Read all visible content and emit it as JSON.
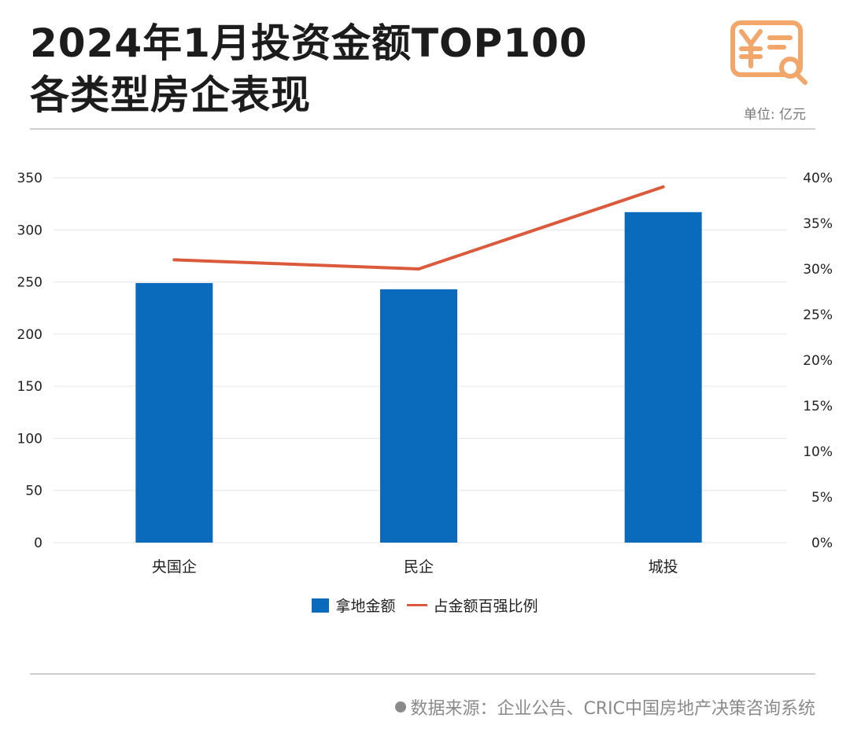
{
  "header": {
    "title_line1": "2024年1月投资金额TOP100",
    "title_line2": "各类型房企表现",
    "unit": "单位: 亿元",
    "logo_icon": "yuan-document-search-icon"
  },
  "footer": {
    "source": "数据来源：企业公告、CRIC中国房地产决策咨询系统"
  },
  "colors": {
    "bar": "#0a6bbd",
    "line": "#db5a3b",
    "logo": "#f2a66a",
    "grid": "#e6e6e6"
  },
  "chart_data": {
    "type": "bar",
    "categories": [
      "央国企",
      "民企",
      "城投"
    ],
    "series": [
      {
        "name": "拿地金额",
        "type": "bar",
        "axis": "left",
        "values": [
          249,
          243,
          317
        ]
      },
      {
        "name": "占金额百强比例",
        "type": "line",
        "axis": "right",
        "values": [
          0.31,
          0.3,
          0.39
        ]
      }
    ],
    "y_left": {
      "min": 0,
      "max": 350,
      "ticks": [
        "0",
        "50",
        "100",
        "150",
        "200",
        "250",
        "300",
        "350"
      ]
    },
    "y_right": {
      "min": 0,
      "max": 0.4,
      "ticks": [
        "0%",
        "5%",
        "10%",
        "15%",
        "20%",
        "25%",
        "30%",
        "35%",
        "40%"
      ]
    },
    "grid": true,
    "legend_position": "bottom"
  }
}
